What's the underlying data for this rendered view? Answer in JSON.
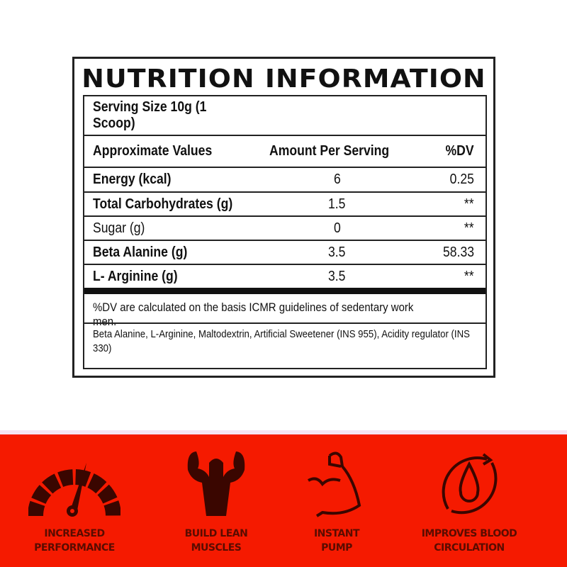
{
  "title": "NUTRITION INFORMATION",
  "serving_size": "Serving Size 10g (1 Scoop)",
  "headers": [
    "Approximate Values",
    "Amount Per Serving",
    "%DV"
  ],
  "rows": [
    {
      "name": "Energy (kcal)",
      "amount": "6",
      "dv": "0.25",
      "bold": true
    },
    {
      "name": "Total Carbohydrates (g)",
      "amount": "1.5",
      "dv": "**",
      "bold": true
    },
    {
      "name": "Sugar (g)",
      "amount": "0",
      "dv": "**",
      "bold": false
    },
    {
      "name": "Beta Alanine (g)",
      "amount": "3.5",
      "dv": "58.33",
      "bold": true
    },
    {
      "name": "L- Arginine (g)",
      "amount": "3.5",
      "dv": "**",
      "bold": true
    }
  ],
  "note": "%DV are calculated on the basis ICMR guidelines of sedentary work men.",
  "ingredients": "Beta Alanine, L-Arginine, Maltodextrin, Artificial Sweetener (INS 955), Acidity regulator (INS 330)",
  "features": [
    {
      "icon": "speedometer-icon",
      "line1": "INCREASED",
      "line2": "PERFORMANCE"
    },
    {
      "icon": "bodybuilder-icon",
      "line1": "BUILD LEAN",
      "line2": "MUSCLES"
    },
    {
      "icon": "flexed-arm-icon",
      "line1": "INSTANT",
      "line2": "PUMP"
    },
    {
      "icon": "blood-circulation-icon",
      "line1": "IMPROVES BLOOD",
      "line2": "CIRCULATION"
    }
  ],
  "colors": {
    "band": "#f51a00",
    "icon": "#3a0600",
    "text": "#5a0c00"
  }
}
